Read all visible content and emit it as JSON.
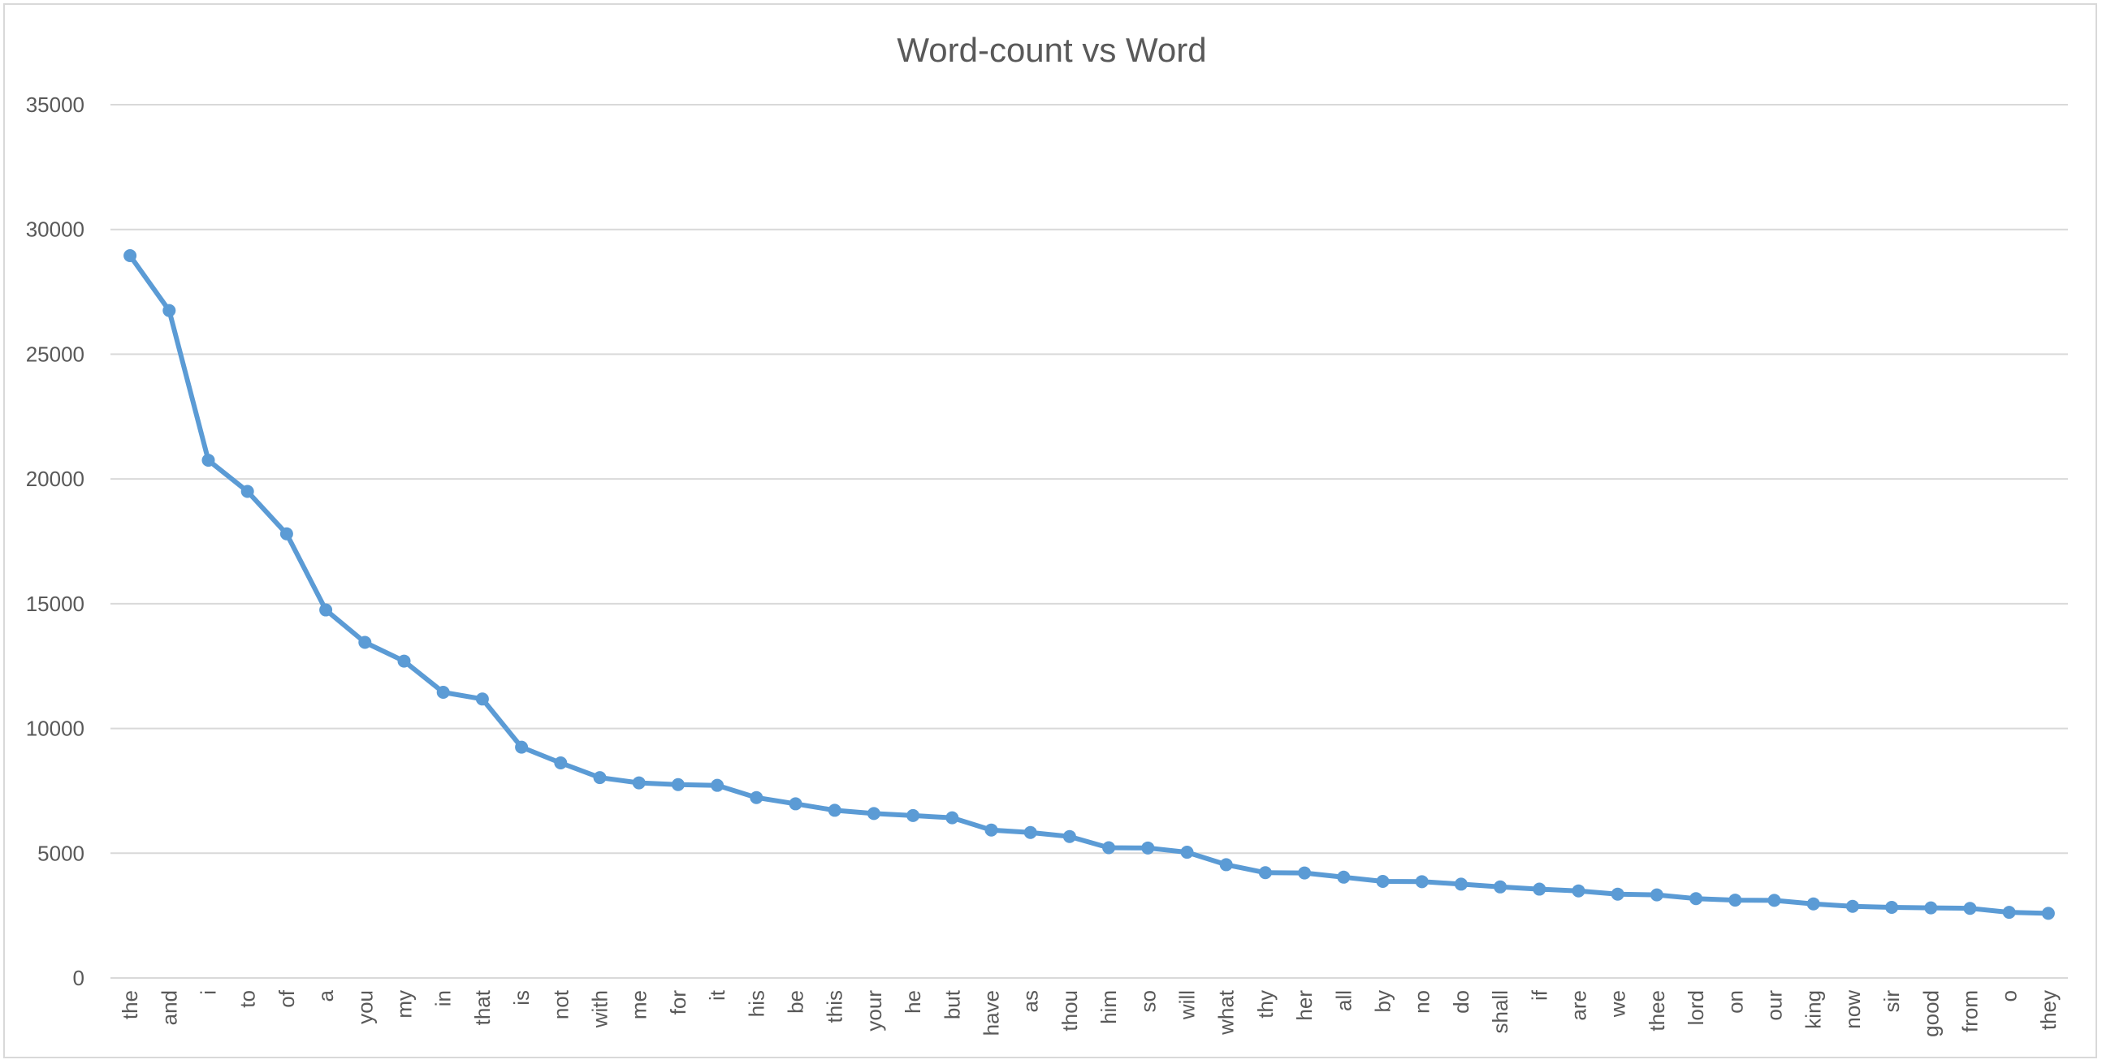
{
  "chart_data": {
    "type": "line",
    "title": "Word-count vs Word",
    "xlabel": "",
    "ylabel": "",
    "ylim": [
      0,
      35000
    ],
    "yticks": [
      0,
      5000,
      10000,
      15000,
      20000,
      25000,
      30000,
      35000
    ],
    "grid": "horizontal",
    "legend": "none",
    "colors": {
      "series": "#5b9bd5",
      "grid": "#d9d9d9",
      "text": "#595959"
    },
    "categories": [
      "the",
      "and",
      "i",
      "to",
      "of",
      "a",
      "you",
      "my",
      "in",
      "that",
      "is",
      "not",
      "with",
      "me",
      "for",
      "it",
      "his",
      "be",
      "this",
      "your",
      "he",
      "but",
      "have",
      "as",
      "thou",
      "him",
      "so",
      "will",
      "what",
      "thy",
      "her",
      "all",
      "by",
      "no",
      "do",
      "shall",
      "if",
      "are",
      "we",
      "thee",
      "lord",
      "on",
      "our",
      "king",
      "now",
      "sir",
      "good",
      "from",
      "o",
      "they"
    ],
    "series": [
      {
        "values": [
          28950,
          26750,
          20750,
          19500,
          17800,
          14750,
          13450,
          12700,
          11450,
          11180,
          9250,
          8620,
          8030,
          7820,
          7750,
          7720,
          7230,
          6980,
          6720,
          6590,
          6510,
          6420,
          5930,
          5830,
          5670,
          5220,
          5210,
          5040,
          4540,
          4220,
          4210,
          4040,
          3870,
          3860,
          3760,
          3650,
          3560,
          3490,
          3360,
          3330,
          3180,
          3120,
          3110,
          2970,
          2870,
          2830,
          2810,
          2790,
          2630,
          2590
        ]
      }
    ]
  }
}
